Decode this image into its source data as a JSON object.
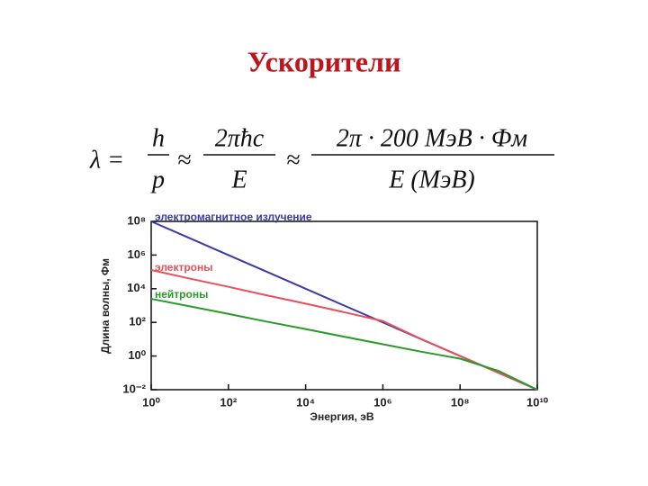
{
  "title": "Ускорители",
  "formula": {
    "lhs": "λ =",
    "f1_num": "h",
    "f1_den": "p",
    "approx1": "≈",
    "f2_num": "2πħc",
    "f2_den": "E",
    "approx2": "≈",
    "f3_num": "2π · 200 МэВ · Фм",
    "f3_den": "E (МэВ)"
  },
  "chart_data": {
    "type": "line",
    "x_label": "Энергия, эВ",
    "y_label": "Длина волны, Фм",
    "x": [
      1,
      10,
      100,
      1000,
      10000,
      100000,
      1000000,
      10000000,
      100000000,
      1000000000,
      10000000000
    ],
    "series": [
      {
        "name": "электромагнитное излучение",
        "color": "#3b3ba8",
        "values": [
          100000000,
          10000000,
          1000000,
          100000,
          10000,
          1000,
          100,
          10,
          1,
          0.1,
          0.01
        ]
      },
      {
        "name": "электроны",
        "color": "#e8505a",
        "values": [
          130000,
          40000,
          13000,
          4000,
          1300,
          400,
          120,
          10,
          1,
          0.1,
          0.01
        ]
      },
      {
        "name": "нейтроны",
        "color": "#2a9a2a",
        "values": [
          2500,
          900,
          320,
          110,
          40,
          14,
          5,
          1.8,
          0.7,
          0.13,
          0.01
        ]
      }
    ],
    "xscale": "log",
    "yscale": "log",
    "xlim": [
      1,
      10000000000
    ],
    "ylim": [
      0.01,
      100000000
    ],
    "xticks": [
      {
        "value": 1,
        "label": "10⁰"
      },
      {
        "value": 100,
        "label": "10²"
      },
      {
        "value": 10000,
        "label": "10⁴"
      },
      {
        "value": 1000000,
        "label": "10⁶"
      },
      {
        "value": 100000000,
        "label": "10⁸"
      },
      {
        "value": 10000000000,
        "label": "10¹⁰"
      }
    ],
    "yticks": [
      {
        "value": 0.01,
        "label": "10⁻²"
      },
      {
        "value": 1,
        "label": "10⁰"
      },
      {
        "value": 100,
        "label": "10²"
      },
      {
        "value": 10000,
        "label": "10⁴"
      },
      {
        "value": 1000000,
        "label": "10⁶"
      },
      {
        "value": 100000000,
        "label": "10⁸"
      }
    ],
    "grid": false
  }
}
